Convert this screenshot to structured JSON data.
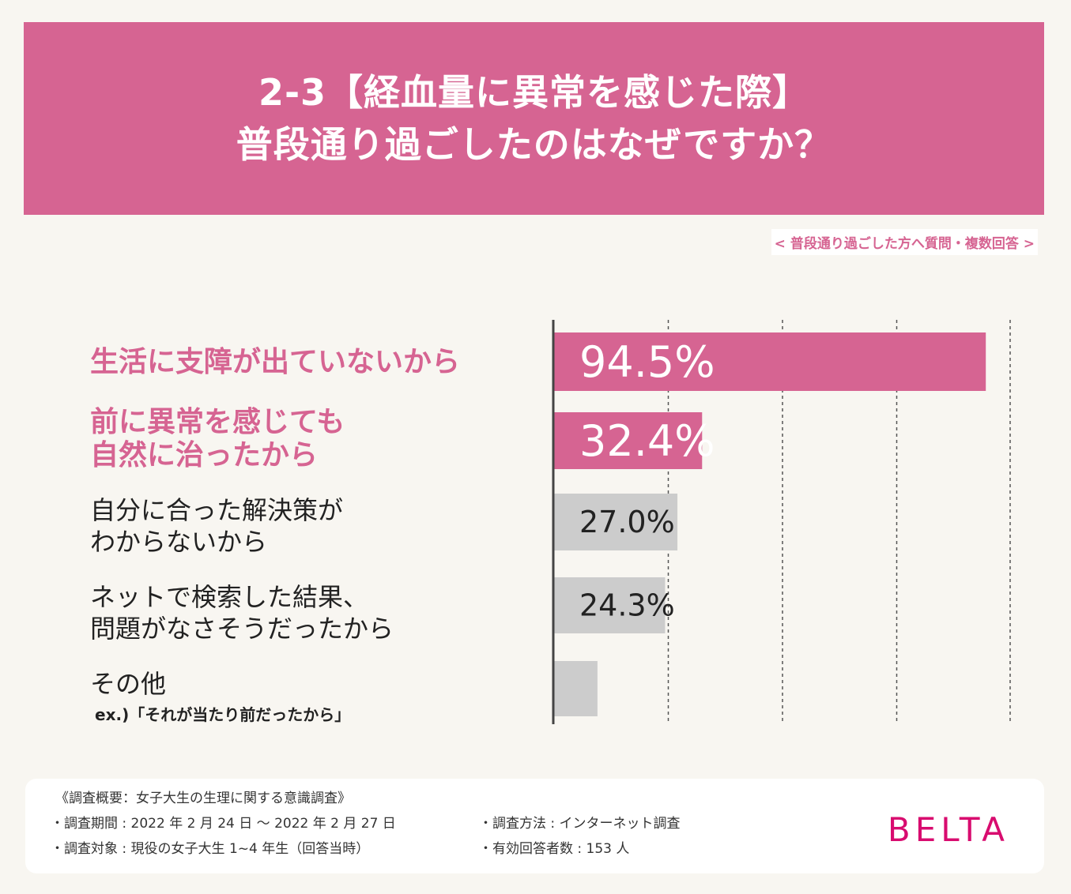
{
  "header": {
    "line1": "2-3【経血量に異常を感じた際】",
    "line2": "普段通り過ごしたのはなぜですか？"
  },
  "subnote": "< 普段通り過ごした方へ質問・複数回答 >",
  "chart_data": {
    "type": "bar",
    "orientation": "horizontal",
    "categories": [
      "生活に支障が出ていないから",
      "前に異常を感じても自然に治ったから",
      "自分に合った解決策がわからないから",
      "ネットで検索した結果、問題がなさそうだったから",
      "その他"
    ],
    "values": [
      94.5,
      32.4,
      27.0,
      24.3,
      9.5
    ],
    "value_labels": [
      "94.5%",
      "32.4%",
      "27.0%",
      "24.3%",
      ""
    ],
    "xlim": [
      0,
      100
    ],
    "grid": "vertical dashed",
    "colors": {
      "highlight": "#d66492",
      "normal": "#cccccc"
    }
  },
  "labels": [
    {
      "lines": [
        "生活に支障が出ていないから"
      ]
    },
    {
      "lines": [
        "前に異常を感じても",
        "自然に治ったから"
      ]
    },
    {
      "lines": [
        "自分に合った解決策が",
        "わからないから"
      ]
    },
    {
      "lines": [
        "ネットで検索した結果、",
        "問題がなさそうだったから"
      ]
    },
    {
      "lines": [
        "その他"
      ],
      "example": "ex.)「それが当たり前だったから」"
    }
  ],
  "footer": {
    "title": "《調査概要：女子大生の生理に関する意識調査》",
    "period": "・調査期間 : 2022 年 2 月 24 日 〜 2022 年 2 月 27 日",
    "target": "・調査対象 : 現役の女子大生 1~4 年生（回答当時）",
    "method": "・調査方法 : インターネット調査",
    "count": "・有効回答者数 : 153 人",
    "brand": "BELTA"
  },
  "colors": {
    "accent": "#d66492",
    "brand": "#d80c6f",
    "bar_gray": "#cccccc",
    "background": "#f8f6f1"
  }
}
